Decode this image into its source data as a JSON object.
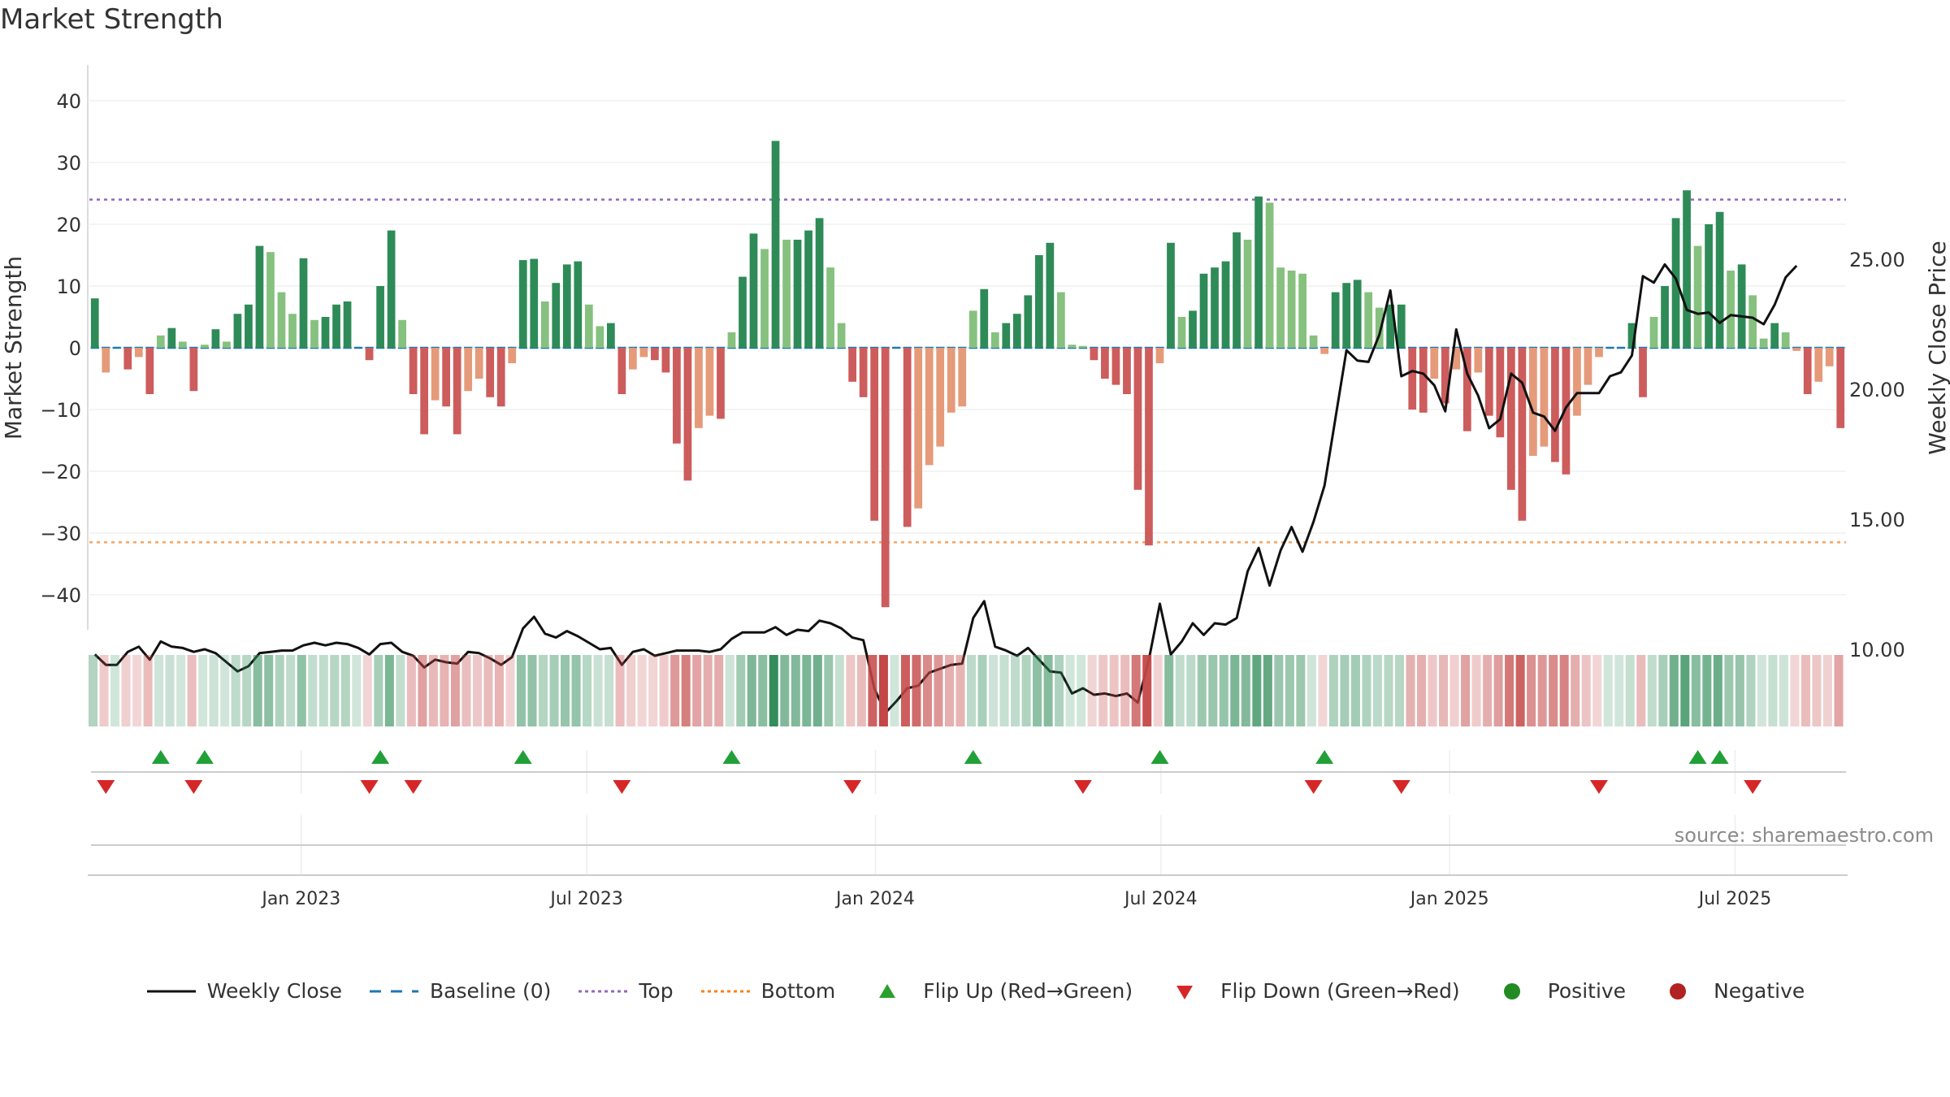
{
  "chart_data": {
    "type": "bar",
    "title": "Market Strength",
    "ylabel": "Market Strength",
    "y2label": "Weekly Close Price",
    "ylim": [
      -45,
      46
    ],
    "y2lim": [
      5.6,
      27.6
    ],
    "yticks": [
      "40",
      "30",
      "20",
      "10",
      "0",
      "−10",
      "−20",
      "−30",
      "−40"
    ],
    "y2ticks": [
      "25.00",
      "20.00",
      "15.00",
      "10.00"
    ],
    "x_tick_labels": [
      "Jan 2023",
      "Jul 2023",
      "Jan 2024",
      "Jul 2024",
      "Jan 2025",
      "Jul 2025"
    ],
    "x_tick_weeks": [
      19.3,
      45.3,
      71.6,
      97.6,
      123.9,
      149.9
    ],
    "top_level": 24,
    "bottom_level": -31.5,
    "strength": [
      8,
      -4,
      0,
      -3.5,
      -1.5,
      -7.5,
      2,
      3.2,
      1,
      -7,
      0.5,
      3,
      1,
      5.5,
      7,
      16.5,
      15.5,
      9,
      5.5,
      14.5,
      4.5,
      5,
      7,
      7.5,
      0,
      -2,
      10,
      19,
      4.5,
      -7.5,
      -14,
      -8.5,
      -9.5,
      -14,
      -7,
      -5,
      -8,
      -9.5,
      -2.5,
      14.2,
      14.4,
      7.5,
      10.5,
      13.5,
      14,
      7,
      3.5,
      4,
      -7.5,
      -3.5,
      -1.5,
      -2,
      -4,
      -15.5,
      -21.5,
      -13,
      -11,
      -11.5,
      2.5,
      11.5,
      18.5,
      16,
      33.5,
      17.5,
      17.5,
      19,
      21,
      13,
      4,
      -5.5,
      -8,
      -28,
      -42,
      0,
      -29,
      -26,
      -19,
      -16,
      -10.5,
      -9.5,
      6,
      9.5,
      2.5,
      4,
      5.5,
      8.5,
      15,
      17,
      9,
      0.5,
      0.3,
      -2,
      -5,
      -6,
      -7.5,
      -23,
      -32,
      -2.5,
      17,
      5,
      6,
      12,
      13,
      14,
      18.7,
      17.5,
      24.5,
      23.5,
      13,
      12.5,
      12,
      2,
      -1,
      9,
      10.5,
      11,
      9,
      6.5,
      7,
      7,
      -10,
      -10.5,
      -5,
      -9,
      -3.5,
      -13.5,
      -4,
      -11,
      -14.5,
      -23,
      -28,
      -17.5,
      -16,
      -18.5,
      -20.5,
      -11,
      -6,
      -1.5,
      0,
      0,
      4,
      -8,
      5,
      10,
      21,
      25.5,
      16.5,
      20,
      22,
      12.5,
      13.5,
      8.5,
      1.5,
      4,
      2.5,
      -0.5,
      -7.5,
      -5.5,
      -3,
      -13
    ],
    "weekly_close": [
      9.8,
      9.4,
      9.4,
      9.9,
      10.1,
      9.6,
      10.3,
      10.1,
      10.05,
      9.9,
      10.0,
      9.85,
      9.5,
      9.15,
      9.35,
      9.85,
      9.9,
      9.95,
      9.95,
      10.15,
      10.25,
      10.15,
      10.25,
      10.2,
      10.05,
      9.8,
      10.2,
      10.25,
      9.9,
      9.75,
      9.3,
      9.6,
      9.5,
      9.45,
      9.9,
      9.85,
      9.65,
      9.4,
      9.7,
      10.8,
      11.25,
      10.6,
      10.45,
      10.7,
      10.5,
      10.25,
      10.0,
      10.05,
      9.4,
      9.9,
      10.0,
      9.75,
      9.85,
      9.95,
      9.95,
      9.95,
      9.9,
      10.0,
      10.4,
      10.65,
      10.65,
      10.65,
      10.85,
      10.55,
      10.75,
      10.7,
      11.1,
      11.0,
      10.8,
      10.45,
      10.35,
      8.5,
      7.55,
      8.0,
      8.5,
      8.6,
      9.1,
      9.25,
      9.4,
      9.45,
      11.2,
      11.85,
      10.1,
      9.95,
      9.75,
      10.05,
      9.6,
      9.15,
      9.1,
      8.3,
      8.5,
      8.25,
      8.3,
      8.2,
      8.3,
      7.95,
      9.6,
      11.75,
      9.8,
      10.3,
      11.0,
      10.55,
      11.0,
      10.95,
      11.2,
      13.0,
      13.9,
      12.45,
      13.8,
      14.7,
      13.75,
      14.9,
      16.3,
      18.9,
      21.5,
      21.1,
      21.05,
      22.1,
      23.8,
      20.5,
      20.7,
      20.6,
      20.15,
      19.15,
      22.3,
      20.6,
      19.75,
      18.5,
      18.85,
      20.6,
      20.25,
      19.1,
      18.95,
      18.4,
      19.3,
      19.85,
      19.85,
      19.85,
      20.5,
      20.65,
      21.3,
      24.35,
      24.1,
      24.8,
      24.25,
      23.05,
      22.9,
      22.95,
      22.55,
      22.85,
      22.8,
      22.75,
      22.5,
      23.25,
      24.3,
      24.75
    ],
    "flip_up_weeks": [
      6,
      10,
      26,
      39,
      58,
      80,
      97,
      112,
      146,
      148
    ],
    "flip_down_weeks": [
      1,
      9,
      25,
      29,
      48,
      69,
      90,
      111,
      119,
      137,
      151
    ],
    "series": [
      {
        "name": "Weekly Close",
        "color": "#111111"
      },
      {
        "name": "Baseline (0)",
        "color": "#1f77b4"
      },
      {
        "name": "Top",
        "color": "#9467bd"
      },
      {
        "name": "Bottom",
        "color": "#ff7f0e"
      },
      {
        "name": "Flip Up (Red→Green)",
        "color": "#2ca02c"
      },
      {
        "name": "Flip Down (Green→Red)",
        "color": "#d62728"
      },
      {
        "name": "Positive",
        "color": "#228b22"
      },
      {
        "name": "Negative",
        "color": "#b22222"
      }
    ],
    "source": "source: sharemaestro.com"
  }
}
